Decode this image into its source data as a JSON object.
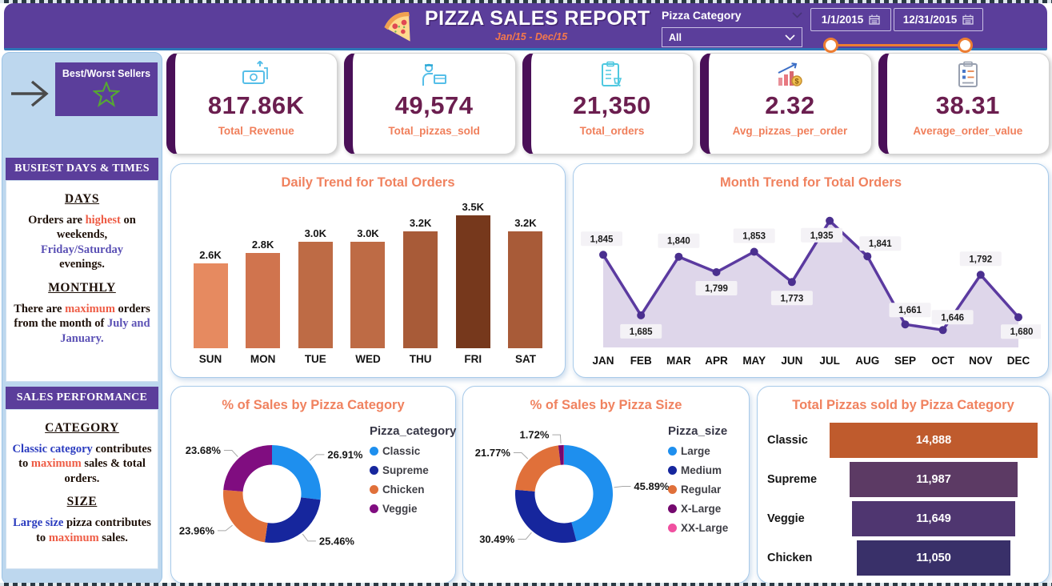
{
  "colors": {
    "header_purple": "#5B3E9B",
    "accent_line_blue": "#2E75B6",
    "sidebar_blue": "#BDD7EE",
    "kpi_stripe": "#4A1058",
    "kpi_number": "#6B1E4F",
    "coral_label": "#F0825F",
    "slider_orange": "#ED7D31"
  },
  "header": {
    "title": "PIZZA SALES REPORT",
    "subtitle": "Jan/15 - Dec/15",
    "filter_label": "Pizza Category",
    "filter_value": "All",
    "date_from": "1/1/2015",
    "date_to": "12/31/2015"
  },
  "sidebar": {
    "nav_button_label": "Best/Worst Sellers",
    "busiest": {
      "header": "BUSIEST DAYS & TIMES",
      "days_heading": "DAYS",
      "p1": [
        {
          "t": "Orders are "
        },
        {
          "t": "highest"
        },
        {
          "t": " on weekends,"
        },
        {
          "t": "Friday/Saturday"
        },
        {
          "t": " evenings."
        }
      ],
      "monthly_heading": "MONTHLY",
      "p2": [
        {
          "t": "There are "
        },
        {
          "t": "maximum"
        },
        {
          "t": " orders from the month of "
        },
        {
          "t": "July and January."
        }
      ]
    },
    "performance": {
      "header": "SALES PERFORMANCE",
      "category_heading": "CATEGORY",
      "p3": [
        {
          "t": "Classic category"
        },
        {
          "t": " contributes to "
        },
        {
          "t": "maximum"
        },
        {
          "t": " sales & total orders."
        }
      ],
      "size_heading": "SIZE",
      "p4": [
        {
          "t": "Large size"
        },
        {
          "t": " pizza contributes to "
        },
        {
          "t": "maximum"
        },
        {
          "t": " sales."
        }
      ]
    }
  },
  "kpis": [
    {
      "value": "817.86K",
      "label": "Total_Revenue",
      "icon": "money-icon"
    },
    {
      "value": "49,574",
      "label": "Total_pizzas_sold",
      "icon": "delivery-icon"
    },
    {
      "value": "21,350",
      "label": "Total_orders",
      "icon": "orders-icon"
    },
    {
      "value": "2.32",
      "label": "Avg_pizzas_per_order",
      "icon": "growth-icon"
    },
    {
      "value": "38.31",
      "label": "Average_order_value",
      "icon": "checklist-icon"
    }
  ],
  "chart_data": [
    {
      "type": "bar",
      "title": "Daily Trend for Total Orders",
      "categories": [
        "SUN",
        "MON",
        "TUE",
        "WED",
        "THU",
        "FRI",
        "SAT"
      ],
      "values": [
        2600,
        2800,
        3000,
        3000,
        3200,
        3500,
        3200
      ],
      "value_labels": [
        "2.6K",
        "2.8K",
        "3.0K",
        "3.0K",
        "3.2K",
        "3.5K",
        "3.2K"
      ],
      "bar_colors": [
        "#E68A60",
        "#D0744E",
        "#BE6B45",
        "#BE6B45",
        "#A85B38",
        "#76381C",
        "#A85B38"
      ],
      "xlabel": "",
      "ylabel": "",
      "ylim": [
        0,
        3500
      ],
      "grid": false
    },
    {
      "type": "line",
      "title": "Month Trend for Total Orders",
      "x": [
        "JAN",
        "FEB",
        "MAR",
        "APR",
        "MAY",
        "JUN",
        "JUL",
        "AUG",
        "SEP",
        "OCT",
        "NOV",
        "DEC"
      ],
      "values": [
        1845,
        1685,
        1840,
        1799,
        1853,
        1773,
        1935,
        1841,
        1661,
        1646,
        1792,
        1680
      ],
      "value_labels": [
        "1,845",
        "1,685",
        "1,840",
        "1,799",
        "1,853",
        "1,773",
        "1,935",
        "1,841",
        "1,661",
        "1,646",
        "1,792",
        "1,680"
      ],
      "line_color": "#5B3AA0",
      "fill_color": "#DBD3E8",
      "area": true,
      "grid": false
    },
    {
      "type": "pie",
      "title": "% of Sales by Pizza Category",
      "legend_title": "Pizza_category",
      "legend_position": "right",
      "labels": [
        "Classic",
        "Supreme",
        "Chicken",
        "Veggie"
      ],
      "values": [
        26.91,
        25.46,
        23.96,
        23.68
      ],
      "value_labels": [
        "26.91%",
        "25.46%",
        "23.96%",
        "23.68%"
      ],
      "colors": [
        "#1E8FEE",
        "#16269D",
        "#E0703A",
        "#800D80"
      ]
    },
    {
      "type": "pie",
      "title": "% of Sales by Pizza Size",
      "legend_title": "Pizza_size",
      "legend_position": "right",
      "labels": [
        "Large",
        "Medium",
        "Regular",
        "X-Large",
        "XX-Large"
      ],
      "values": [
        45.89,
        30.49,
        21.77,
        1.72,
        0.13
      ],
      "value_labels": [
        "45.89%",
        "30.49%",
        "21.77%",
        "1.72%",
        ""
      ],
      "colors": [
        "#1E8FEE",
        "#16269D",
        "#E0703A",
        "#74086E",
        "#F050A0"
      ]
    },
    {
      "type": "bar",
      "orientation": "horizontal",
      "title": "Total Pizzas sold by Pizza Category",
      "categories": [
        "Classic",
        "Supreme",
        "Veggie",
        "Chicken"
      ],
      "values": [
        14888,
        11987,
        11649,
        11050
      ],
      "value_labels": [
        "14,888",
        "11,987",
        "11,649",
        "11,050"
      ],
      "bar_colors": [
        "#BF5B2D",
        "#5C3A64",
        "#4F3670",
        "#393069"
      ],
      "xlim": [
        0,
        14888
      ]
    }
  ]
}
